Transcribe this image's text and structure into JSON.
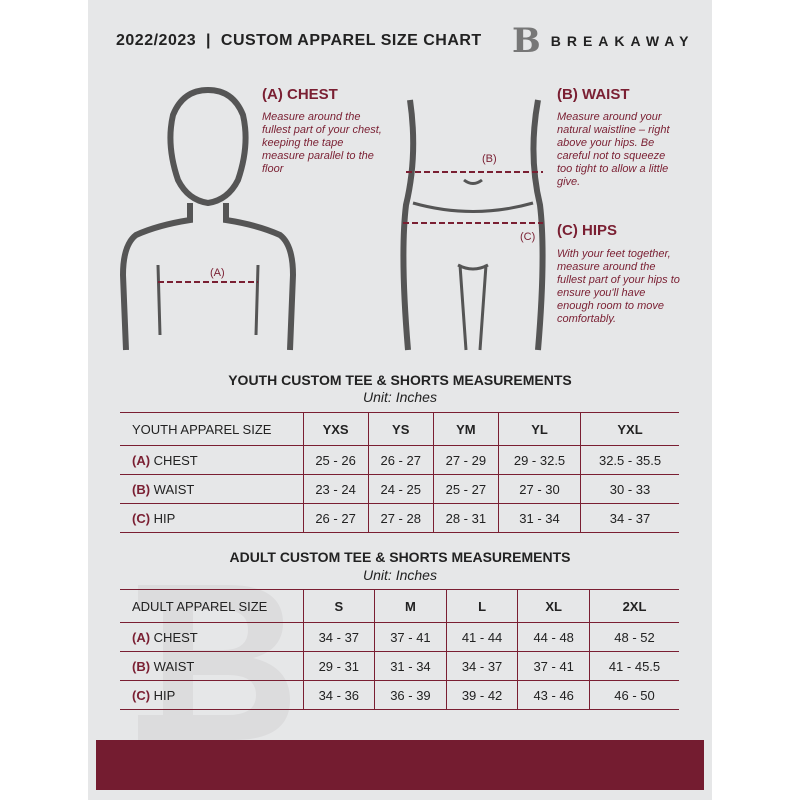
{
  "header": {
    "title": "2022/2023  |  CUSTOM APPAREL SIZE CHART",
    "logo_text": "BREAKAWAY",
    "logo_mark": "B"
  },
  "chest": {
    "heading": "(A) CHEST",
    "text": "Measure around the fullest part of your chest, keeping the tape measure parallel to the floor",
    "marker": "(A)"
  },
  "waist": {
    "heading": "(B) WAIST",
    "text": "Measure around your natural waistline – right above your hips. Be careful not to squeeze too tight to allow a little give.",
    "marker": "(B)"
  },
  "hips": {
    "heading": "(C) HIPS",
    "text": "With your feet together, measure around the fullest part of your hips to ensure you'll have enough room to move comfortably.",
    "marker": "(C)"
  },
  "youth": {
    "title": "YOUTH CUSTOM TEE & SHORTS MEASUREMENTS",
    "unit": "Unit: Inches",
    "corner": "YOUTH APPAREL SIZE",
    "sizes": [
      "YXS",
      "YS",
      "YM",
      "YL",
      "YXL"
    ],
    "rows": [
      {
        "letter": "(A)",
        "label": "CHEST",
        "values": [
          "25 - 26",
          "26 - 27",
          "27 - 29",
          "29 - 32.5",
          "32.5 - 35.5"
        ]
      },
      {
        "letter": "(B)",
        "label": "WAIST",
        "values": [
          "23 - 24",
          "24 - 25",
          "25 - 27",
          "27 - 30",
          "30 - 33"
        ]
      },
      {
        "letter": "(C)",
        "label": "HIP",
        "values": [
          "26 - 27",
          "27 - 28",
          "28 - 31",
          "31 - 34",
          "34 - 37"
        ]
      }
    ]
  },
  "adult": {
    "title": "ADULT CUSTOM TEE & SHORTS MEASUREMENTS",
    "unit": "Unit: Inches",
    "corner": "ADULT APPAREL SIZE",
    "sizes": [
      "S",
      "M",
      "L",
      "XL",
      "2XL"
    ],
    "rows": [
      {
        "letter": "(A)",
        "label": "CHEST",
        "values": [
          "34 - 37",
          "37 - 41",
          "41 - 44",
          "44 - 48",
          "48 - 52"
        ]
      },
      {
        "letter": "(B)",
        "label": "WAIST",
        "values": [
          "29 - 31",
          "31 - 34",
          "34 - 37",
          "37 - 41",
          "41 - 45.5"
        ]
      },
      {
        "letter": "(C)",
        "label": "HIP",
        "values": [
          "34 - 36",
          "36 - 39",
          "39 - 42",
          "43 - 46",
          "46 - 50"
        ]
      }
    ]
  },
  "colors": {
    "accent": "#7a1f32",
    "background": "#e6e7e8"
  }
}
